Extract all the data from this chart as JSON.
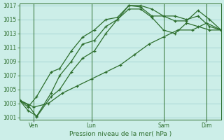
{
  "xlabel": "Pression niveau de la mer( hPa )",
  "background_color": "#cceee8",
  "grid_color": "#99cccc",
  "line_color": "#2d6e2d",
  "ylim": [
    1001,
    1017
  ],
  "ytick_step": 2,
  "yticks": [
    1001,
    1003,
    1005,
    1007,
    1009,
    1011,
    1013,
    1015,
    1017
  ],
  "xlim": [
    0,
    7
  ],
  "day_labels": [
    "Ven",
    "Lun",
    "Sam",
    "Dim"
  ],
  "day_positions": [
    0.5,
    2.5,
    5.0,
    6.5
  ],
  "vline_positions": [
    0.5,
    2.5,
    5.0,
    6.5
  ],
  "series": [
    {
      "x": [
        0.0,
        0.3,
        0.6,
        1.1,
        1.4,
        1.8,
        2.2,
        2.6,
        3.0,
        3.4,
        3.8,
        4.2,
        4.6,
        5.0,
        5.4,
        5.8,
        6.2,
        6.6,
        7.0
      ],
      "y": [
        1003.5,
        1002.5,
        1004.0,
        1007.5,
        1008.0,
        1010.5,
        1012.5,
        1013.5,
        1015.0,
        1015.3,
        1017.0,
        1017.0,
        1016.5,
        1015.5,
        1015.5,
        1015.0,
        1015.5,
        1014.0,
        1013.5
      ]
    },
    {
      "x": [
        0.0,
        0.3,
        0.6,
        1.1,
        1.4,
        1.8,
        2.2,
        2.6,
        3.0,
        3.4,
        3.8,
        4.2,
        4.6,
        5.0,
        5.4,
        5.8,
        6.2,
        6.6,
        7.0
      ],
      "y": [
        1003.5,
        1002.0,
        1001.2,
        1004.5,
        1007.0,
        1009.0,
        1011.5,
        1012.0,
        1014.0,
        1015.0,
        1017.0,
        1016.8,
        1015.5,
        1015.5,
        1014.8,
        1014.8,
        1016.3,
        1015.0,
        1013.5
      ]
    },
    {
      "x": [
        0.0,
        0.3,
        0.6,
        1.1,
        1.4,
        1.8,
        2.2,
        2.6,
        3.0,
        3.4,
        3.8,
        4.2,
        4.6,
        5.0,
        5.4,
        5.8,
        6.2,
        6.6,
        7.0
      ],
      "y": [
        1003.5,
        1002.8,
        1001.1,
        1004.0,
        1005.0,
        1007.5,
        1009.5,
        1010.5,
        1013.0,
        1015.0,
        1016.5,
        1016.5,
        1015.3,
        1013.5,
        1013.0,
        1014.5,
        1014.0,
        1013.5,
        1013.5
      ]
    },
    {
      "x": [
        0.0,
        0.5,
        1.0,
        1.5,
        2.0,
        2.5,
        3.0,
        3.5,
        4.0,
        4.5,
        5.0,
        5.5,
        6.0,
        6.5,
        7.0
      ],
      "y": [
        1003.5,
        1002.5,
        1003.0,
        1004.5,
        1005.5,
        1006.5,
        1007.5,
        1008.5,
        1010.0,
        1011.5,
        1012.5,
        1013.5,
        1013.5,
        1014.5,
        1013.5
      ]
    }
  ]
}
